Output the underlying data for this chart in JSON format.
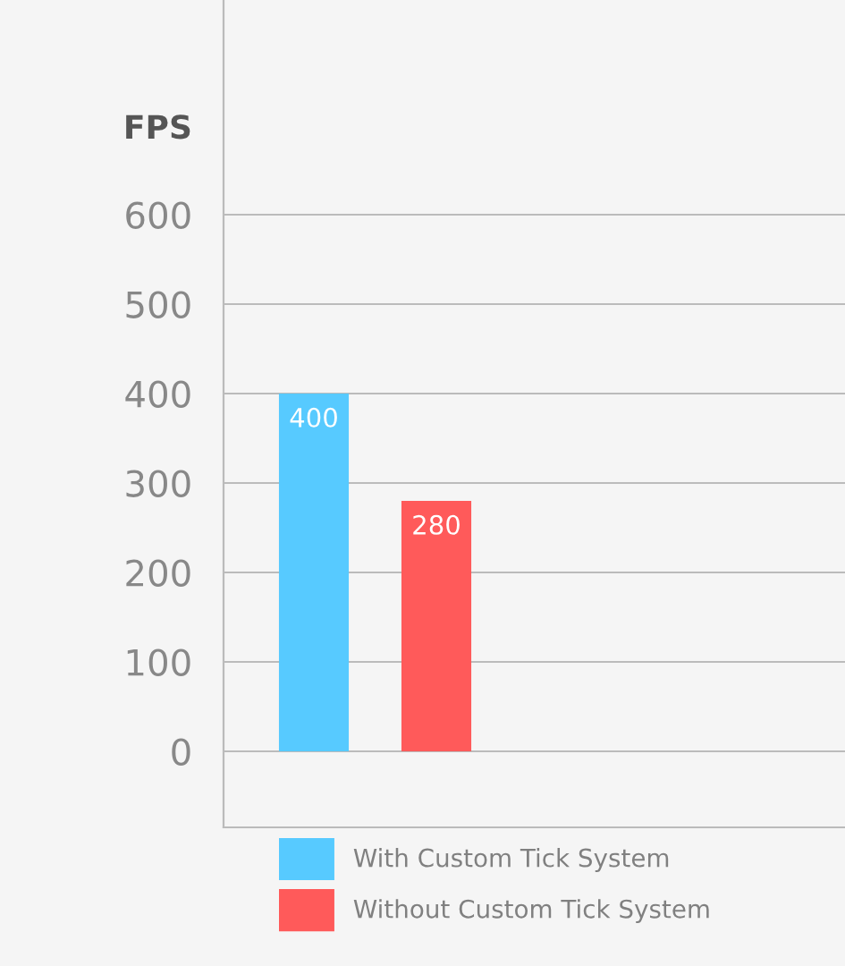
{
  "chart_data": {
    "type": "bar",
    "ylabel": "FPS",
    "categories": [
      null
    ],
    "series": [
      {
        "name": "With Custom Tick System",
        "color": "#57caff",
        "values": [
          400
        ]
      },
      {
        "name": "Without Custom Tick System",
        "color": "#ff5a5a",
        "values": [
          280
        ]
      }
    ],
    "ylim": [
      -85,
      840
    ],
    "yticks": [
      0,
      100,
      200,
      300,
      400,
      500,
      600
    ],
    "grid": "y",
    "legend": "bottom",
    "tick_labels": "y",
    "data_labels": true
  }
}
